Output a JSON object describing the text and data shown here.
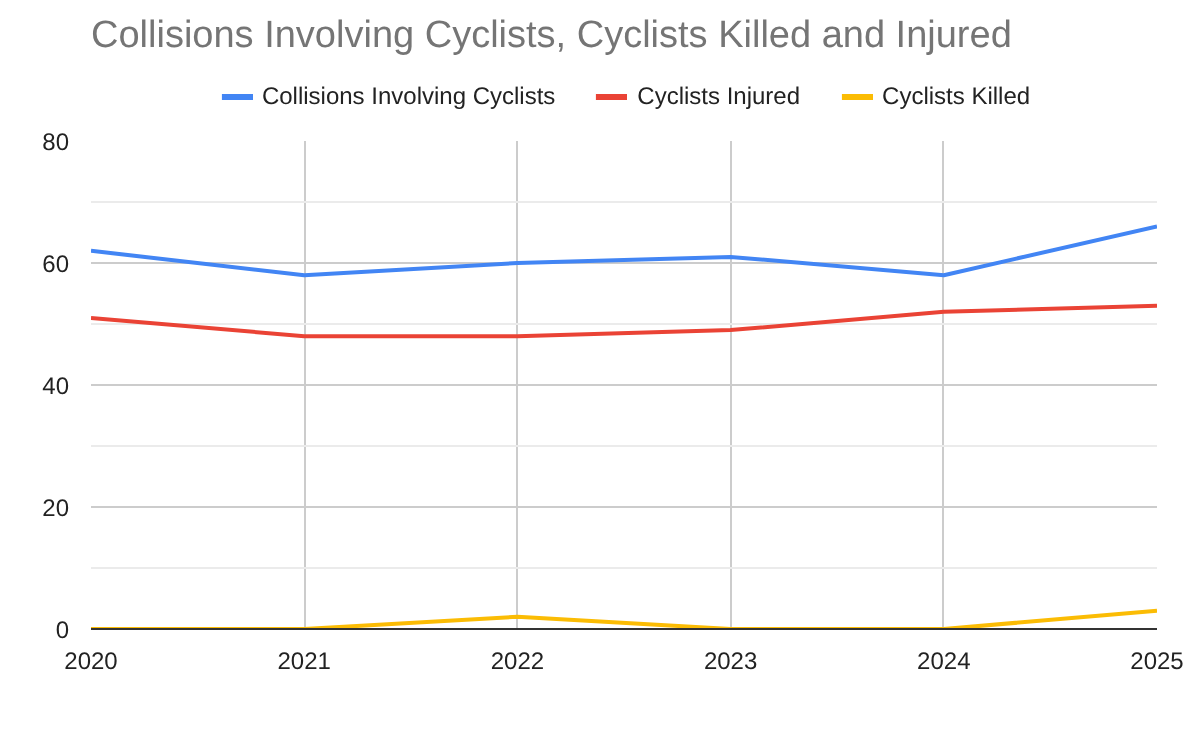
{
  "chart_data": {
    "type": "line",
    "title": "Collisions Involving Cyclists, Cyclists Killed and Injured",
    "x": [
      2020,
      2021,
      2022,
      2023,
      2024,
      2025
    ],
    "series": [
      {
        "name": "Collisions Involving Cyclists",
        "color": "#4285f4",
        "values": [
          62,
          58,
          60,
          61,
          58,
          66
        ]
      },
      {
        "name": "Cyclists Injured",
        "color": "#ea4335",
        "values": [
          51,
          48,
          48,
          49,
          52,
          53
        ]
      },
      {
        "name": "Cyclists Killed",
        "color": "#fbbc04",
        "values": [
          0,
          0,
          2,
          0,
          0,
          3
        ]
      }
    ],
    "xlim": [
      2020,
      2025
    ],
    "xticks": [
      2020,
      2021,
      2022,
      2023,
      2024,
      2025
    ],
    "ylim": [
      0,
      80
    ],
    "yticks": [
      0,
      {
        "value": 10,
        "label": null
      },
      20,
      {
        "value": 30,
        "label": null
      },
      40,
      {
        "value": 50,
        "label": null
      },
      60,
      {
        "value": 70,
        "label": null
      },
      80
    ],
    "grid": true,
    "legend": "top",
    "marker": "none",
    "line_style": "solid"
  }
}
